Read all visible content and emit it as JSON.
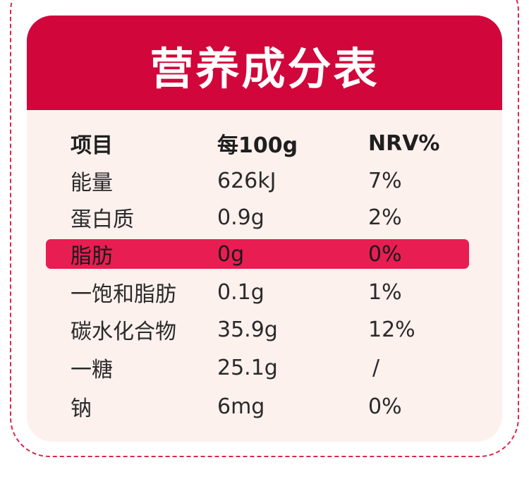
{
  "title": "营养成分表",
  "columns": [
    "项目",
    "每100g",
    "NRV%"
  ],
  "rows": [
    {
      "name": "能量",
      "per100g": "626kJ",
      "nrv": "7%"
    },
    {
      "name": "蛋白质",
      "per100g": "0.9g",
      "nrv": "2%"
    },
    {
      "name": "脂肪",
      "per100g": "0g",
      "nrv": "0%"
    },
    {
      "name": "一饱和脂肪",
      "per100g": "0.1g",
      "nrv": "1%"
    },
    {
      "name": "碳水化合物",
      "per100g": "35.9g",
      "nrv": "12%"
    },
    {
      "name": "一糖",
      "per100g": "25.1g",
      "nrv": "/"
    },
    {
      "name": "钠",
      "per100g": "6mg",
      "nrv": "0%"
    }
  ],
  "colors": {
    "accent_red": "#d1063a",
    "highlight_pink": "#e81d52",
    "card_bg": "#fdf1ee",
    "dashed_border": "#d8284a"
  }
}
